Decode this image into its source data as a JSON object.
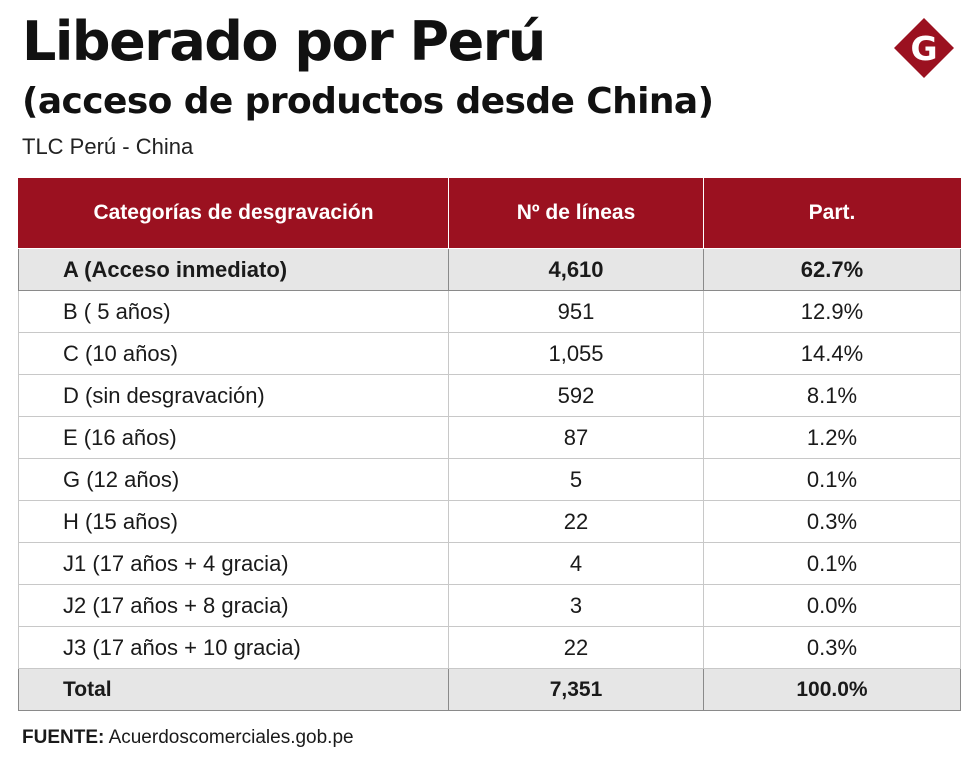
{
  "header": {
    "title": "Liberado por Perú",
    "subtitle": "(acceso de productos desde China)",
    "kicker": "TLC Perú - China",
    "logo_letter": "G"
  },
  "colors": {
    "accent": "#9b1120",
    "row_highlight": "#e6e6e6"
  },
  "table": {
    "headers": [
      "Categorías de desgravación",
      "Nº de líneas",
      "Part."
    ],
    "rows": [
      {
        "category": "A (Acceso inmediato)",
        "lines": "4,610",
        "part": "62.7%"
      },
      {
        "category": "B ( 5 años)",
        "lines": "951",
        "part": "12.9%"
      },
      {
        "category": "C (10 años)",
        "lines": "1,055",
        "part": "14.4%"
      },
      {
        "category": "D (sin desgravación)",
        "lines": "592",
        "part": "8.1%"
      },
      {
        "category": "E (16 años)",
        "lines": "87",
        "part": "1.2%"
      },
      {
        "category": "G (12 años)",
        "lines": "5",
        "part": "0.1%"
      },
      {
        "category": "H (15 años)",
        "lines": "22",
        "part": "0.3%"
      },
      {
        "category": "J1 (17 años + 4 gracia)",
        "lines": "4",
        "part": "0.1%"
      },
      {
        "category": "J2 (17 años + 8 gracia)",
        "lines": "3",
        "part": "0.0%"
      },
      {
        "category": "J3 (17 años + 10 gracia)",
        "lines": "22",
        "part": "0.3%"
      }
    ],
    "total": {
      "category": "Total",
      "lines": "7,351",
      "part": "100.0%"
    }
  },
  "footer": {
    "source_label": "FUENTE:",
    "source_text": "Acuerdoscomerciales.gob.pe"
  }
}
